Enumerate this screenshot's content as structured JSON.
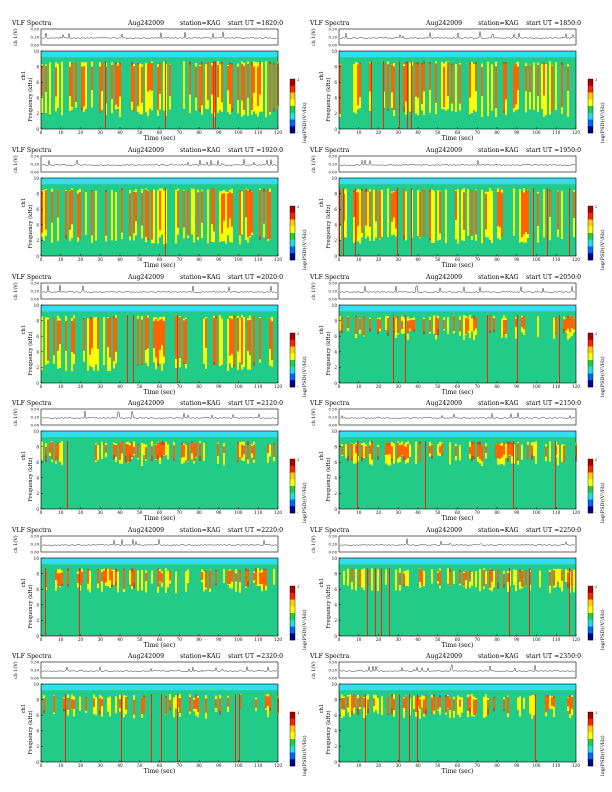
{
  "common": {
    "title": "VLF Spectra",
    "date": "Aug242009",
    "station": "station=KAG",
    "ut_prefix": "start  UT  =",
    "waveform_ylabel": "ch 1(V)",
    "waveform_yticks": [
      "0.00",
      "0.20",
      "0.50"
    ],
    "spectro_ylabel_top": "ch1",
    "spectro_ylabel": "Frequency  (kHz)",
    "spectro_yticks": [
      "0",
      "2",
      "4",
      "6",
      "8",
      "10"
    ],
    "xlabel": "Time  (sec)",
    "xticks": [
      "0",
      "10",
      "20",
      "30",
      "40",
      "50",
      "60",
      "70",
      "80",
      "90",
      "100",
      "110",
      "120"
    ],
    "colorbar_label": "log(PSD)(V²/Hz)",
    "colorbar_ticks": [
      "2",
      "-"
    ],
    "colors": {
      "background": "#22cc88",
      "band": "#33ddee",
      "yellow": "#ffff00",
      "red": "#ff2200",
      "green": "#22cc44",
      "gray": "#888888"
    }
  },
  "chart_data": [
    {
      "type": "heatmap",
      "start_ut": "1820:0",
      "xlim": [
        0,
        120
      ],
      "ylim": [
        0,
        10
      ],
      "pattern": "dense"
    },
    {
      "type": "heatmap",
      "start_ut": "1850:0",
      "xlim": [
        0,
        120
      ],
      "ylim": [
        0,
        10
      ],
      "pattern": "dense"
    },
    {
      "type": "heatmap",
      "start_ut": "1920:0",
      "xlim": [
        0,
        120
      ],
      "ylim": [
        0,
        10
      ],
      "pattern": "dense"
    },
    {
      "type": "heatmap",
      "start_ut": "1950:0",
      "xlim": [
        0,
        120
      ],
      "ylim": [
        0,
        10
      ],
      "pattern": "dense"
    },
    {
      "type": "heatmap",
      "start_ut": "2020:0",
      "xlim": [
        0,
        120
      ],
      "ylim": [
        0,
        10
      ],
      "pattern": "dense"
    },
    {
      "type": "heatmap",
      "start_ut": "2050:0",
      "xlim": [
        0,
        120
      ],
      "ylim": [
        0,
        10
      ],
      "pattern": "upper"
    },
    {
      "type": "heatmap",
      "start_ut": "2120:0",
      "xlim": [
        0,
        120
      ],
      "ylim": [
        0,
        10
      ],
      "pattern": "upper"
    },
    {
      "type": "heatmap",
      "start_ut": "2150:0",
      "xlim": [
        0,
        120
      ],
      "ylim": [
        0,
        10
      ],
      "pattern": "upper"
    },
    {
      "type": "heatmap",
      "start_ut": "2220:0",
      "xlim": [
        0,
        120
      ],
      "ylim": [
        0,
        10
      ],
      "pattern": "upper"
    },
    {
      "type": "heatmap",
      "start_ut": "2250:0",
      "xlim": [
        0,
        120
      ],
      "ylim": [
        0,
        10
      ],
      "pattern": "upper"
    },
    {
      "type": "heatmap",
      "start_ut": "2320:0",
      "xlim": [
        0,
        120
      ],
      "ylim": [
        0,
        10
      ],
      "pattern": "upper"
    },
    {
      "type": "heatmap",
      "start_ut": "2350:0",
      "xlim": [
        0,
        120
      ],
      "ylim": [
        0,
        10
      ],
      "pattern": "upper"
    }
  ]
}
